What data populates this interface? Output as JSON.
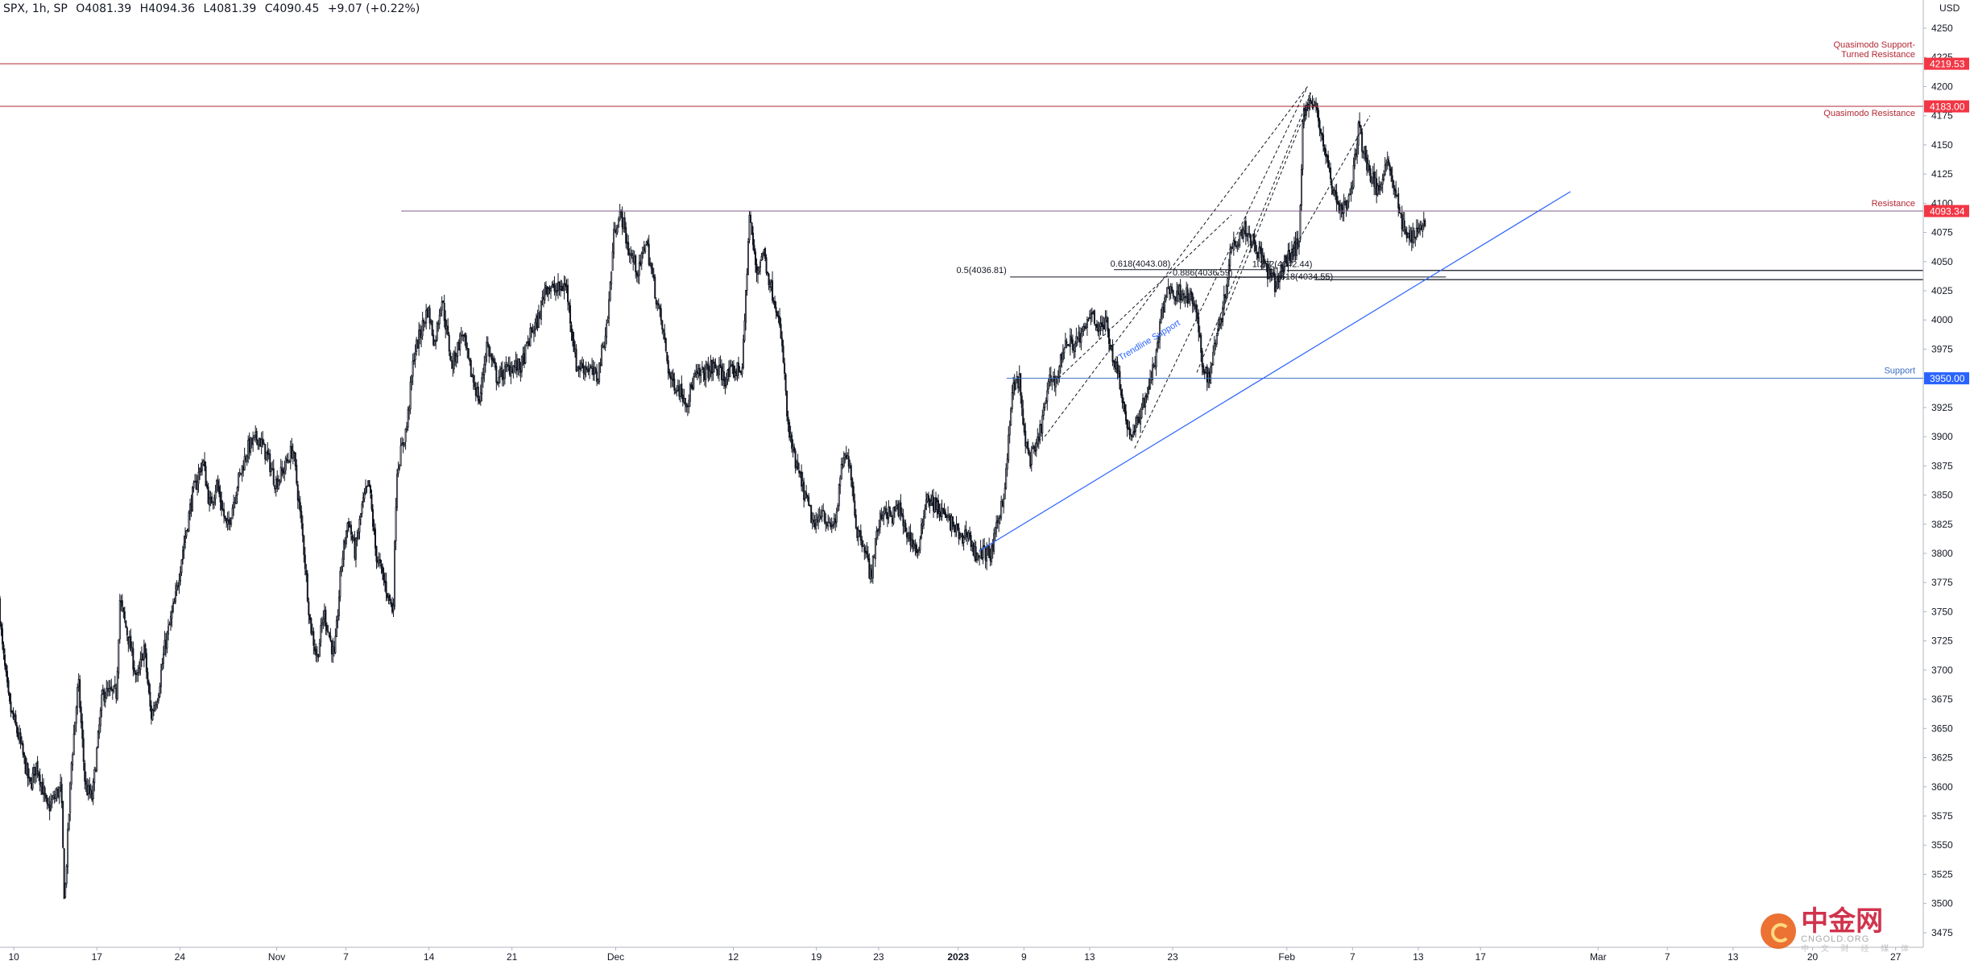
{
  "header": {
    "symbol": "SPX, 1h, SP",
    "open": "O4081.39",
    "high": "H4094.36",
    "low": "L4081.39",
    "close": "C4090.45",
    "change": "+9.07 (+0.22%)"
  },
  "watermark": {
    "cn": "中金网",
    "en": "CNGOLD.ORG",
    "sub": "中 文 财 经 媒 体"
  },
  "colors": {
    "up": "#ffffff",
    "down": "#131722",
    "red": "#f23645",
    "darkred": "#b22833",
    "blue": "#2962ff",
    "support_blue": "#3a6ec2"
  },
  "chart_data": {
    "type": "candlestick",
    "interval": "1h",
    "currency": "USD",
    "ylim": [
      3462.5,
      4270
    ],
    "y_ticks": [
      3475,
      3500,
      3525,
      3550,
      3575,
      3600,
      3625,
      3650,
      3675,
      3700,
      3725,
      3750,
      3775,
      3800,
      3825,
      3850,
      3875,
      3900,
      3925,
      3950,
      3975,
      4000,
      4025,
      4050,
      4075,
      4100,
      4125,
      4150,
      4175,
      4200,
      4225,
      4250
    ],
    "x_ticks": [
      {
        "label": "10",
        "t": 0.2
      },
      {
        "label": "17",
        "t": 1.4
      },
      {
        "label": "24",
        "t": 2.6
      },
      {
        "label": "Nov",
        "t": 4.0
      },
      {
        "label": "7",
        "t": 5.0
      },
      {
        "label": "14",
        "t": 6.2
      },
      {
        "label": "21",
        "t": 7.4
      },
      {
        "label": "Dec",
        "t": 8.9
      },
      {
        "label": "12",
        "t": 10.6
      },
      {
        "label": "19",
        "t": 11.8
      },
      {
        "label": "23",
        "t": 12.7
      },
      {
        "label": "2023",
        "t": 13.85
      },
      {
        "label": "9",
        "t": 14.8
      },
      {
        "label": "13",
        "t": 15.75
      },
      {
        "label": "23",
        "t": 16.95
      },
      {
        "label": "Feb",
        "t": 18.6
      },
      {
        "label": "7",
        "t": 19.55
      },
      {
        "label": "13",
        "t": 20.5
      },
      {
        "label": "17",
        "t": 21.4
      },
      {
        "label": "Mar",
        "t": 23.1
      },
      {
        "label": "7",
        "t": 24.1
      },
      {
        "label": "13",
        "t": 25.05
      },
      {
        "label": "20",
        "t": 26.2
      },
      {
        "label": "27",
        "t": 27.4
      }
    ],
    "price_path": [
      [
        0.0,
        3760
      ],
      [
        0.05,
        3720
      ],
      [
        0.15,
        3670
      ],
      [
        0.3,
        3640
      ],
      [
        0.45,
        3600
      ],
      [
        0.55,
        3620
      ],
      [
        0.7,
        3580
      ],
      [
        0.9,
        3600
      ],
      [
        0.95,
        3500
      ],
      [
        1.05,
        3620
      ],
      [
        1.15,
        3690
      ],
      [
        1.25,
        3600
      ],
      [
        1.35,
        3590
      ],
      [
        1.5,
        3680
      ],
      [
        1.7,
        3680
      ],
      [
        1.75,
        3760
      ],
      [
        1.9,
        3720
      ],
      [
        2.0,
        3690
      ],
      [
        2.1,
        3720
      ],
      [
        2.2,
        3660
      ],
      [
        2.3,
        3680
      ],
      [
        2.4,
        3720
      ],
      [
        2.55,
        3760
      ],
      [
        2.65,
        3800
      ],
      [
        2.8,
        3850
      ],
      [
        2.95,
        3880
      ],
      [
        3.05,
        3840
      ],
      [
        3.15,
        3860
      ],
      [
        3.3,
        3820
      ],
      [
        3.45,
        3860
      ],
      [
        3.6,
        3890
      ],
      [
        3.75,
        3900
      ],
      [
        3.9,
        3880
      ],
      [
        4.0,
        3860
      ],
      [
        4.1,
        3870
      ],
      [
        4.25,
        3890
      ],
      [
        4.4,
        3810
      ],
      [
        4.5,
        3740
      ],
      [
        4.6,
        3710
      ],
      [
        4.7,
        3750
      ],
      [
        4.85,
        3710
      ],
      [
        4.95,
        3790
      ],
      [
        5.05,
        3830
      ],
      [
        5.15,
        3800
      ],
      [
        5.25,
        3840
      ],
      [
        5.35,
        3860
      ],
      [
        5.45,
        3800
      ],
      [
        5.55,
        3780
      ],
      [
        5.7,
        3750
      ],
      [
        5.75,
        3870
      ],
      [
        5.9,
        3910
      ],
      [
        6.0,
        3970
      ],
      [
        6.1,
        3990
      ],
      [
        6.2,
        4010
      ],
      [
        6.3,
        3980
      ],
      [
        6.4,
        4020
      ],
      [
        6.55,
        3960
      ],
      [
        6.7,
        3990
      ],
      [
        6.8,
        3960
      ],
      [
        6.95,
        3930
      ],
      [
        7.05,
        3980
      ],
      [
        7.2,
        3950
      ],
      [
        7.4,
        3960
      ],
      [
        7.55,
        3960
      ],
      [
        7.7,
        3990
      ],
      [
        7.8,
        4000
      ],
      [
        7.9,
        4030
      ],
      [
        8.05,
        4025
      ],
      [
        8.2,
        4030
      ],
      [
        8.35,
        3960
      ],
      [
        8.5,
        3960
      ],
      [
        8.65,
        3950
      ],
      [
        8.8,
        4000
      ],
      [
        8.9,
        4080
      ],
      [
        9.0,
        4090
      ],
      [
        9.1,
        4060
      ],
      [
        9.25,
        4040
      ],
      [
        9.35,
        4070
      ],
      [
        9.5,
        4020
      ],
      [
        9.6,
        3990
      ],
      [
        9.7,
        3950
      ],
      [
        9.85,
        3940
      ],
      [
        9.95,
        3930
      ],
      [
        10.05,
        3950
      ],
      [
        10.2,
        3955
      ],
      [
        10.35,
        3960
      ],
      [
        10.5,
        3950
      ],
      [
        10.6,
        3955
      ],
      [
        10.75,
        3960
      ],
      [
        10.85,
        4090
      ],
      [
        10.95,
        4040
      ],
      [
        11.05,
        4060
      ],
      [
        11.15,
        4030
      ],
      [
        11.25,
        4010
      ],
      [
        11.35,
        3960
      ],
      [
        11.4,
        3910
      ],
      [
        11.5,
        3880
      ],
      [
        11.6,
        3860
      ],
      [
        11.7,
        3840
      ],
      [
        11.8,
        3820
      ],
      [
        11.9,
        3840
      ],
      [
        12.0,
        3820
      ],
      [
        12.1,
        3830
      ],
      [
        12.2,
        3880
      ],
      [
        12.3,
        3880
      ],
      [
        12.4,
        3820
      ],
      [
        12.5,
        3810
      ],
      [
        12.6,
        3780
      ],
      [
        12.7,
        3820
      ],
      [
        12.8,
        3840
      ],
      [
        12.9,
        3830
      ],
      [
        13.0,
        3840
      ],
      [
        13.1,
        3820
      ],
      [
        13.2,
        3810
      ],
      [
        13.3,
        3800
      ],
      [
        13.4,
        3850
      ],
      [
        13.55,
        3840
      ],
      [
        13.7,
        3830
      ],
      [
        13.85,
        3820
      ],
      [
        13.9,
        3810
      ],
      [
        14.0,
        3820
      ],
      [
        14.1,
        3800
      ],
      [
        14.25,
        3800
      ],
      [
        14.35,
        3800
      ],
      [
        14.45,
        3830
      ],
      [
        14.55,
        3860
      ],
      [
        14.65,
        3940
      ],
      [
        14.75,
        3950
      ],
      [
        14.8,
        3910
      ],
      [
        14.9,
        3880
      ],
      [
        15.0,
        3890
      ],
      [
        15.1,
        3920
      ],
      [
        15.2,
        3950
      ],
      [
        15.3,
        3950
      ],
      [
        15.4,
        3980
      ],
      [
        15.55,
        3980
      ],
      [
        15.7,
        3990
      ],
      [
        15.8,
        4010
      ],
      [
        15.9,
        3990
      ],
      [
        16.0,
        4000
      ],
      [
        16.1,
        3970
      ],
      [
        16.2,
        3950
      ],
      [
        16.3,
        3910
      ],
      [
        16.4,
        3900
      ],
      [
        16.5,
        3920
      ],
      [
        16.6,
        3940
      ],
      [
        16.7,
        3960
      ],
      [
        16.8,
        4000
      ],
      [
        16.9,
        4030
      ],
      [
        17.0,
        4020
      ],
      [
        17.1,
        4025
      ],
      [
        17.2,
        4020
      ],
      [
        17.3,
        4010
      ],
      [
        17.4,
        3960
      ],
      [
        17.5,
        3950
      ],
      [
        17.6,
        3990
      ],
      [
        17.7,
        4010
      ],
      [
        17.8,
        4060
      ],
      [
        17.9,
        4070
      ],
      [
        18.0,
        4080
      ],
      [
        18.1,
        4070
      ],
      [
        18.2,
        4060
      ],
      [
        18.35,
        4040
      ],
      [
        18.45,
        4030
      ],
      [
        18.6,
        4050
      ],
      [
        18.7,
        4060
      ],
      [
        18.8,
        4065
      ],
      [
        18.85,
        4180
      ],
      [
        18.95,
        4185
      ],
      [
        19.05,
        4180
      ],
      [
        19.15,
        4150
      ],
      [
        19.25,
        4120
      ],
      [
        19.35,
        4100
      ],
      [
        19.45,
        4095
      ],
      [
        19.55,
        4110
      ],
      [
        19.65,
        4165
      ],
      [
        19.75,
        4140
      ],
      [
        19.85,
        4120
      ],
      [
        19.95,
        4110
      ],
      [
        20.05,
        4140
      ],
      [
        20.15,
        4120
      ],
      [
        20.25,
        4090
      ],
      [
        20.35,
        4070
      ],
      [
        20.45,
        4075
      ],
      [
        20.55,
        4080
      ],
      [
        20.6,
        4085
      ]
    ],
    "levels": [
      {
        "label": "Quasimodo Support-Turned Resistance",
        "label_lines": [
          "Quasimodo Support-",
          "Turned Resistance"
        ],
        "value": 4219.53,
        "badge": "4219.53"
      },
      {
        "label": "Quasimodo Resistance",
        "value": 4183.0,
        "badge": "4183.00"
      },
      {
        "label": "Resistance",
        "value": 4093.34,
        "badge": "4093.34"
      },
      {
        "label": "Support",
        "value": 3950.0,
        "badge": "3950.00"
      }
    ],
    "fib_annotations": [
      {
        "label": "0.5(4036.81)",
        "value": 4036.81
      },
      {
        "label": "0.618(4043.08)",
        "value": 4043.08
      },
      {
        "label": "0.886(4036.59)",
        "value": 4036.59
      },
      {
        "label": "1.272(4042.44)",
        "value": 4042.44
      },
      {
        "label": "1.618(4034.55)",
        "value": 4034.55
      }
    ],
    "trendline": {
      "label": "Trendline Support",
      "from": [
        14.15,
        3802
      ],
      "to": [
        22.7,
        4110
      ]
    }
  }
}
